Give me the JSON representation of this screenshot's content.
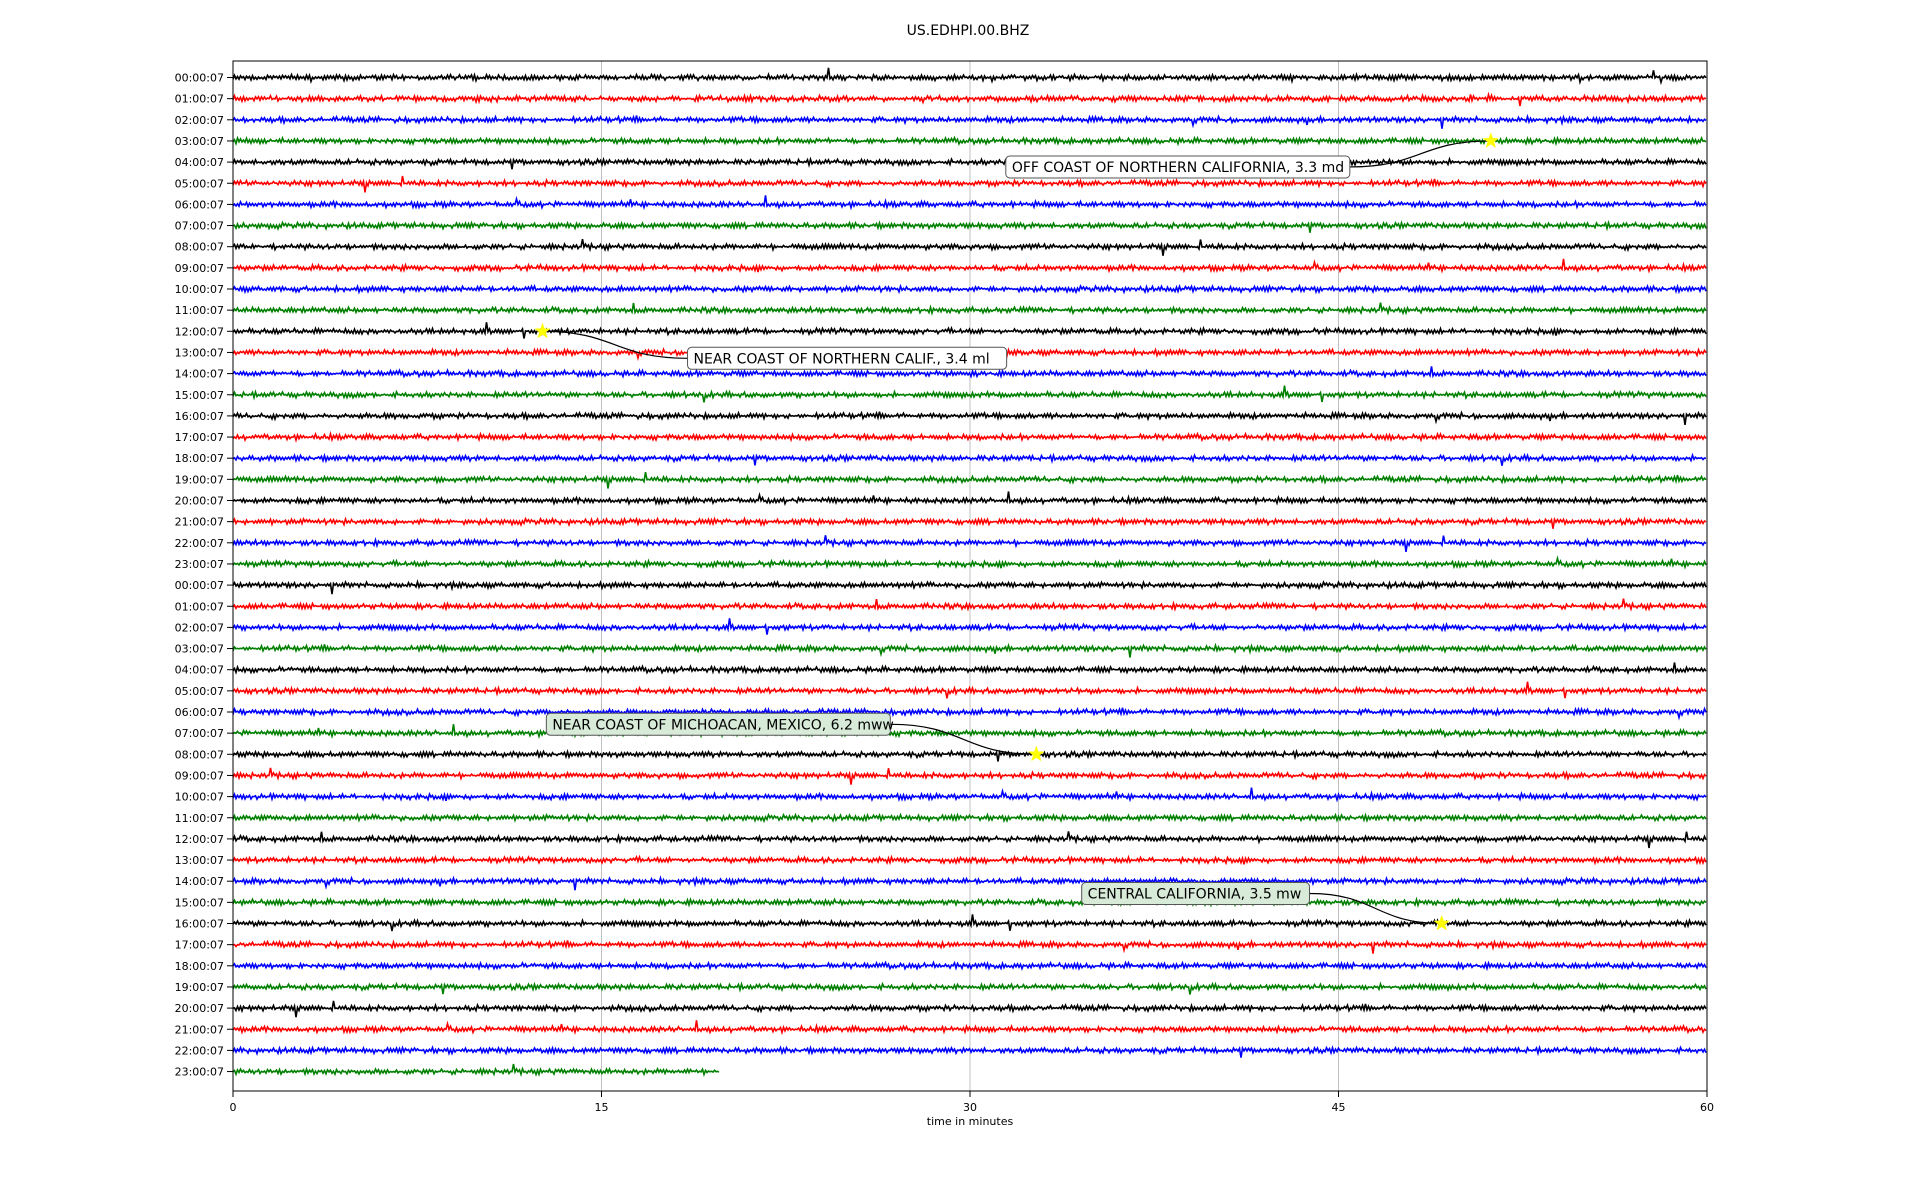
{
  "chart_data": {
    "type": "line",
    "title": "US.EDHPI.00.BHZ",
    "xlabel": "time in minutes",
    "ylabel": "",
    "xlim": [
      0,
      60
    ],
    "x_ticks": [
      0,
      15,
      30,
      45,
      60
    ],
    "grid": "vertical",
    "row_colors": [
      "#000000",
      "#ff0000",
      "#0000ff",
      "#008000"
    ],
    "rows": [
      "00:00:07",
      "01:00:07",
      "02:00:07",
      "03:00:07",
      "04:00:07",
      "05:00:07",
      "06:00:07",
      "07:00:07",
      "08:00:07",
      "09:00:07",
      "10:00:07",
      "11:00:07",
      "12:00:07",
      "13:00:07",
      "14:00:07",
      "15:00:07",
      "16:00:07",
      "17:00:07",
      "18:00:07",
      "19:00:07",
      "20:00:07",
      "21:00:07",
      "22:00:07",
      "23:00:07",
      "00:00:07",
      "01:00:07",
      "02:00:07",
      "03:00:07",
      "04:00:07",
      "05:00:07",
      "06:00:07",
      "07:00:07",
      "08:00:07",
      "09:00:07",
      "10:00:07",
      "11:00:07",
      "12:00:07",
      "13:00:07",
      "14:00:07",
      "15:00:07",
      "16:00:07",
      "17:00:07",
      "18:00:07",
      "19:00:07",
      "20:00:07",
      "21:00:07",
      "22:00:07",
      "23:00:07"
    ],
    "last_row_end_minute": 19.8,
    "annotations": [
      {
        "text": "OFF COAST OF NORTHERN CALIFORNIA, 3.3 md",
        "row": 3,
        "minute": 51.2,
        "box_color": "#ffffff"
      },
      {
        "text": "NEAR COAST OF NORTHERN CALIF., 3.4 ml",
        "row": 12,
        "minute": 12.6,
        "box_color": "#ffffff"
      },
      {
        "text": "NEAR COAST OF MICHOACAN, MEXICO, 6.2 mww",
        "row": 32,
        "minute": 32.7,
        "box_color": "#d8ead8"
      },
      {
        "text": "CENTRAL CALIFORNIA, 3.5 mw",
        "row": 40,
        "minute": 49.2,
        "box_color": "#d8ead8"
      }
    ],
    "star_color": "#ffff00"
  }
}
